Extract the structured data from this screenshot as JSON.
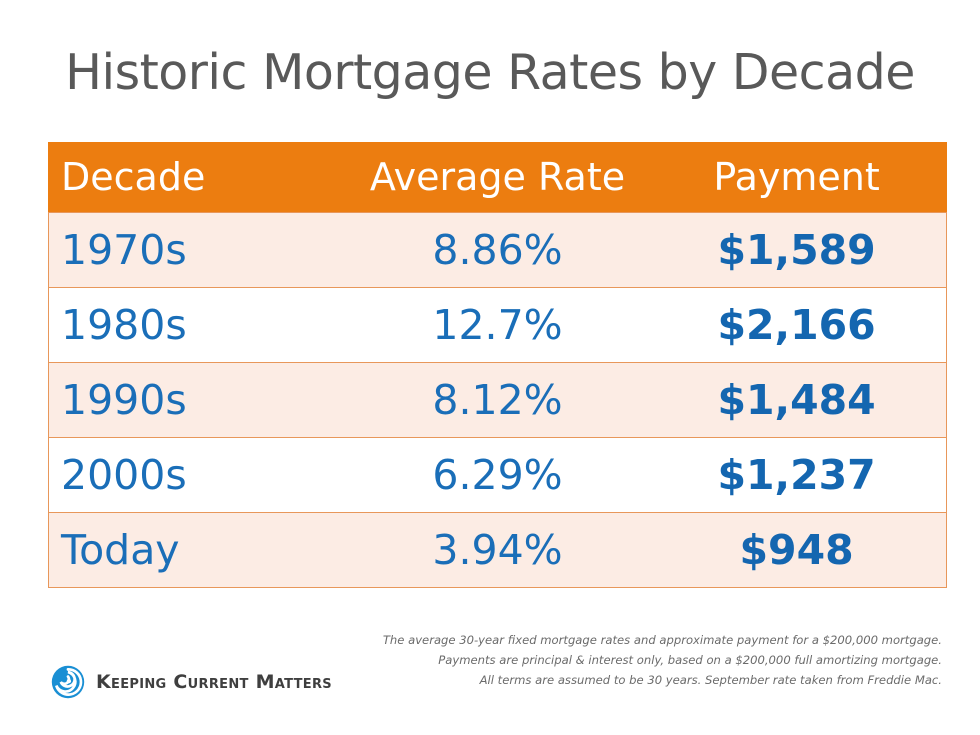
{
  "title": "Historic Mortgage Rates by Decade",
  "chart_data": {
    "type": "table",
    "columns": [
      "Decade",
      "Average Rate",
      "Payment"
    ],
    "rows": [
      [
        "1970s",
        "8.86%",
        "$1,589"
      ],
      [
        "1980s",
        "12.7%",
        "$2,166"
      ],
      [
        "1990s",
        "8.12%",
        "$1,484"
      ],
      [
        "2000s",
        "6.29%",
        "$1,237"
      ],
      [
        "Today",
        "3.94%",
        "$948"
      ]
    ]
  },
  "footnotes": [
    "The average 30-year fixed mortgage rates and approximate payment for a $200,000 mortgage.",
    "Payments are principal & interest only, based on a $200,000 full amortizing mortgage.",
    "All terms are assumed to be 30 years. September rate taken from Freddie Mac."
  ],
  "brand": {
    "name": "Keeping Current Matters",
    "icon": "swirl-logo-icon",
    "colors": {
      "header": "#ec7d10",
      "text_blue": "#1a6eb8",
      "row_tint": "#fcece4"
    }
  }
}
